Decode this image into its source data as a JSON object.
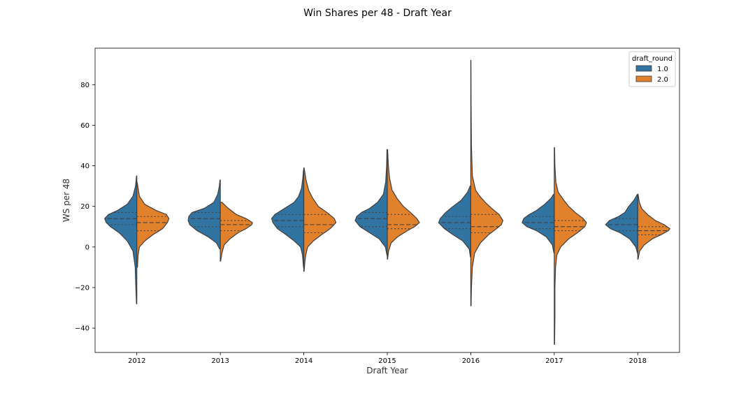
{
  "chart_data": {
    "type": "violin",
    "split": true,
    "inner": "quartile",
    "title": "Win Shares per 48 - Draft Year",
    "xlabel": "Draft Year",
    "ylabel": "WS per 48",
    "categories": [
      "2012",
      "2013",
      "2014",
      "2015",
      "2016",
      "2017",
      "2018"
    ],
    "ylim": [
      -52,
      98
    ],
    "yticks": [
      -40,
      -20,
      0,
      20,
      40,
      60,
      80
    ],
    "legend": {
      "title": "draft_round",
      "position": "top-right",
      "entries": [
        "1.0",
        "2.0"
      ]
    },
    "series": [
      {
        "name": "1.0",
        "color": "#3274a1",
        "groups": [
          {
            "min": -28,
            "max": 35,
            "q1": 11,
            "median": 14,
            "q3": 17,
            "profile": [
              [
                -28,
                0.01
              ],
              [
                -20,
                0.03
              ],
              [
                -10,
                0.05
              ],
              [
                -2,
                0.12
              ],
              [
                3,
                0.3
              ],
              [
                7,
                0.55
              ],
              [
                10,
                0.82
              ],
              [
                12,
                0.95
              ],
              [
                14,
                1.0
              ],
              [
                16,
                0.88
              ],
              [
                18,
                0.6
              ],
              [
                21,
                0.3
              ],
              [
                25,
                0.12
              ],
              [
                30,
                0.04
              ],
              [
                35,
                0.01
              ]
            ]
          },
          {
            "min": -1,
            "max": 33,
            "q1": 10,
            "median": 14,
            "q3": 17,
            "profile": [
              [
                -1,
                0.02
              ],
              [
                2,
                0.12
              ],
              [
                5,
                0.38
              ],
              [
                8,
                0.72
              ],
              [
                11,
                0.95
              ],
              [
                13,
                1.0
              ],
              [
                15,
                0.98
              ],
              [
                17,
                0.88
              ],
              [
                19,
                0.5
              ],
              [
                22,
                0.2
              ],
              [
                26,
                0.08
              ],
              [
                30,
                0.03
              ],
              [
                33,
                0.01
              ]
            ]
          },
          {
            "min": -10,
            "max": 38,
            "q1": 10,
            "median": 13,
            "q3": 16,
            "profile": [
              [
                -10,
                0.01
              ],
              [
                -4,
                0.04
              ],
              [
                0,
                0.1
              ],
              [
                3,
                0.3
              ],
              [
                6,
                0.55
              ],
              [
                9,
                0.82
              ],
              [
                12,
                0.96
              ],
              [
                14,
                1.0
              ],
              [
                16,
                0.9
              ],
              [
                19,
                0.6
              ],
              [
                22,
                0.3
              ],
              [
                25,
                0.16
              ],
              [
                29,
                0.07
              ],
              [
                34,
                0.03
              ],
              [
                38,
                0.01
              ]
            ]
          },
          {
            "min": -4,
            "max": 48,
            "q1": 10,
            "median": 14,
            "q3": 17,
            "profile": [
              [
                -4,
                0.01
              ],
              [
                0,
                0.06
              ],
              [
                4,
                0.25
              ],
              [
                7,
                0.55
              ],
              [
                10,
                0.85
              ],
              [
                13,
                1.0
              ],
              [
                15,
                0.95
              ],
              [
                17,
                0.8
              ],
              [
                19,
                0.55
              ],
              [
                22,
                0.3
              ],
              [
                26,
                0.12
              ],
              [
                32,
                0.05
              ],
              [
                40,
                0.02
              ],
              [
                48,
                0.01
              ]
            ]
          },
          {
            "min": -5,
            "max": 30,
            "q1": 9,
            "median": 12,
            "q3": 15,
            "profile": [
              [
                -5,
                0.01
              ],
              [
                -1,
                0.05
              ],
              [
                3,
                0.25
              ],
              [
                6,
                0.55
              ],
              [
                9,
                0.82
              ],
              [
                12,
                1.0
              ],
              [
                14,
                0.95
              ],
              [
                17,
                0.78
              ],
              [
                20,
                0.55
              ],
              [
                23,
                0.3
              ],
              [
                27,
                0.1
              ],
              [
                30,
                0.02
              ]
            ]
          },
          {
            "min": -3,
            "max": 26,
            "q1": 9,
            "median": 12,
            "q3": 15,
            "profile": [
              [
                -3,
                0.01
              ],
              [
                1,
                0.06
              ],
              [
                5,
                0.25
              ],
              [
                8,
                0.55
              ],
              [
                10,
                0.85
              ],
              [
                12,
                1.0
              ],
              [
                14,
                0.95
              ],
              [
                16,
                0.78
              ],
              [
                18,
                0.55
              ],
              [
                21,
                0.3
              ],
              [
                24,
                0.1
              ],
              [
                26,
                0.02
              ]
            ]
          },
          {
            "min": -3,
            "max": 26,
            "q1": 8,
            "median": 11,
            "q3": 14,
            "profile": [
              [
                -3,
                0.01
              ],
              [
                0,
                0.06
              ],
              [
                4,
                0.25
              ],
              [
                7,
                0.55
              ],
              [
                9,
                0.85
              ],
              [
                11,
                1.0
              ],
              [
                13,
                0.88
              ],
              [
                15,
                0.6
              ],
              [
                17,
                0.4
              ],
              [
                20,
                0.28
              ],
              [
                23,
                0.12
              ],
              [
                26,
                0.01
              ]
            ]
          }
        ]
      },
      {
        "name": "2.0",
        "color": "#e1812c",
        "groups": [
          {
            "min": -10,
            "max": 32,
            "q1": 8,
            "median": 12,
            "q3": 15,
            "profile": [
              [
                -10,
                0.02
              ],
              [
                -4,
                0.04
              ],
              [
                0,
                0.08
              ],
              [
                3,
                0.25
              ],
              [
                6,
                0.5
              ],
              [
                9,
                0.8
              ],
              [
                12,
                0.95
              ],
              [
                14,
                1.0
              ],
              [
                16,
                0.92
              ],
              [
                18,
                0.6
              ],
              [
                21,
                0.25
              ],
              [
                25,
                0.08
              ],
              [
                32,
                0.01
              ]
            ]
          },
          {
            "min": -7,
            "max": 22,
            "q1": 8,
            "median": 11,
            "q3": 13,
            "profile": [
              [
                -7,
                0.01
              ],
              [
                -3,
                0.05
              ],
              [
                1,
                0.12
              ],
              [
                4,
                0.3
              ],
              [
                7,
                0.55
              ],
              [
                9,
                0.8
              ],
              [
                11,
                0.98
              ],
              [
                12,
                1.0
              ],
              [
                14,
                0.8
              ],
              [
                16,
                0.5
              ],
              [
                19,
                0.25
              ],
              [
                22,
                0.05
              ]
            ]
          },
          {
            "min": -12,
            "max": 39,
            "q1": 7,
            "median": 11,
            "q3": 16,
            "profile": [
              [
                -12,
                0.01
              ],
              [
                -8,
                0.03
              ],
              [
                -4,
                0.06
              ],
              [
                0,
                0.12
              ],
              [
                3,
                0.3
              ],
              [
                6,
                0.55
              ],
              [
                9,
                0.82
              ],
              [
                12,
                1.0
              ],
              [
                14,
                0.95
              ],
              [
                17,
                0.72
              ],
              [
                20,
                0.45
              ],
              [
                24,
                0.28
              ],
              [
                28,
                0.15
              ],
              [
                33,
                0.07
              ],
              [
                39,
                0.01
              ]
            ]
          },
          {
            "min": -6,
            "max": 48,
            "q1": 9,
            "median": 11,
            "q3": 16,
            "profile": [
              [
                -6,
                0.01
              ],
              [
                -2,
                0.04
              ],
              [
                2,
                0.12
              ],
              [
                5,
                0.32
              ],
              [
                8,
                0.62
              ],
              [
                10,
                0.85
              ],
              [
                12,
                1.0
              ],
              [
                14,
                0.92
              ],
              [
                17,
                0.72
              ],
              [
                20,
                0.5
              ],
              [
                24,
                0.3
              ],
              [
                28,
                0.15
              ],
              [
                34,
                0.07
              ],
              [
                41,
                0.03
              ],
              [
                48,
                0.01
              ]
            ]
          },
          {
            "min": -29,
            "max": 92,
            "q1": 7,
            "median": 10,
            "q3": 16,
            "profile": [
              [
                -29,
                0.01
              ],
              [
                -20,
                0.02
              ],
              [
                -10,
                0.05
              ],
              [
                -3,
                0.12
              ],
              [
                2,
                0.3
              ],
              [
                6,
                0.55
              ],
              [
                9,
                0.8
              ],
              [
                11,
                0.95
              ],
              [
                13,
                1.0
              ],
              [
                16,
                0.88
              ],
              [
                19,
                0.65
              ],
              [
                22,
                0.45
              ],
              [
                25,
                0.28
              ],
              [
                28,
                0.15
              ],
              [
                35,
                0.05
              ],
              [
                50,
                0.02
              ],
              [
                70,
                0.01
              ],
              [
                92,
                0.005
              ]
            ]
          },
          {
            "min": -48,
            "max": 49,
            "q1": 8,
            "median": 10,
            "q3": 13,
            "profile": [
              [
                -48,
                0.01
              ],
              [
                -35,
                0.02
              ],
              [
                -20,
                0.02
              ],
              [
                -10,
                0.04
              ],
              [
                -4,
                0.08
              ],
              [
                0,
                0.2
              ],
              [
                4,
                0.45
              ],
              [
                7,
                0.72
              ],
              [
                10,
                0.95
              ],
              [
                12,
                1.0
              ],
              [
                14,
                0.9
              ],
              [
                17,
                0.65
              ],
              [
                20,
                0.45
              ],
              [
                23,
                0.3
              ],
              [
                27,
                0.12
              ],
              [
                32,
                0.05
              ],
              [
                40,
                0.02
              ],
              [
                49,
                0.01
              ]
            ]
          },
          {
            "min": -6,
            "max": 26,
            "q1": 6,
            "median": 8,
            "q3": 10,
            "profile": [
              [
                -6,
                0.01
              ],
              [
                -2,
                0.06
              ],
              [
                1,
                0.2
              ],
              [
                4,
                0.45
              ],
              [
                6,
                0.72
              ],
              [
                8,
                0.95
              ],
              [
                9,
                1.0
              ],
              [
                11,
                0.82
              ],
              [
                13,
                0.55
              ],
              [
                16,
                0.3
              ],
              [
                19,
                0.12
              ],
              [
                22,
                0.05
              ],
              [
                26,
                0.01
              ]
            ]
          }
        ]
      }
    ]
  }
}
